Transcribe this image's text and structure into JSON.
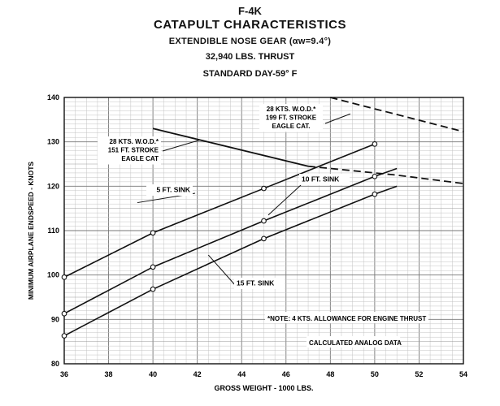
{
  "header": {
    "model": "F-4K",
    "title": "CATAPULT CHARACTERISTICS",
    "config": "EXTENDIBLE NOSE GEAR (αw=9.4°)",
    "thrust": "32,940 LBS. THRUST",
    "day": "STANDARD DAY-59° F"
  },
  "chart_data": {
    "type": "line",
    "title": "F-4K CATAPULT CHARACTERISTICS",
    "xlabel": "GROSS WEIGHT - 1000 LBS.",
    "ylabel": "MINIMUM AIRPLANE ENDSPEED - KNOTS",
    "xlim": [
      36,
      54
    ],
    "ylim": [
      80,
      140
    ],
    "xticks": [
      36,
      38,
      40,
      42,
      44,
      46,
      48,
      50,
      52,
      54
    ],
    "yticks": [
      80,
      90,
      100,
      110,
      120,
      130,
      140
    ],
    "grid": true,
    "series": [
      {
        "name": "5 FT. SINK",
        "label_text": "5 FT. SINK",
        "style": "solid",
        "x": [
          36,
          40,
          45,
          50
        ],
        "y": [
          99.5,
          109.5,
          119.5,
          129.5
        ]
      },
      {
        "name": "10 FT. SINK",
        "label_text": "10 FT. SINK",
        "style": "solid",
        "x": [
          36,
          40,
          45,
          50,
          51
        ],
        "y": [
          91.3,
          101.8,
          112.2,
          122.2,
          124
        ]
      },
      {
        "name": "15 FT. SINK",
        "label_text": "15 FT. SINK",
        "style": "solid",
        "x": [
          36,
          40,
          45,
          50,
          51
        ],
        "y": [
          86.3,
          96.8,
          108.2,
          118.2,
          120
        ]
      },
      {
        "name": "28 KTS. W.O.D. 151 FT. STROKE EAGLE CAT",
        "style": "solid-dashed",
        "x": [
          40,
          47,
          51,
          54
        ],
        "y": [
          133,
          124.5,
          122.5,
          120.6
        ],
        "label_lines": [
          "28 KTS. W.O.D.*",
          "151 FT. STROKE",
          "EAGLE CAT"
        ]
      },
      {
        "name": "28 KTS. W.O.D. 199 FT. STROKE EAGLE CAT.",
        "style": "dashed",
        "x": [
          48,
          54
        ],
        "y": [
          140,
          132.3
        ],
        "label_lines": [
          "28 KTS. W.O.D.*",
          "199 FT. STROKE",
          "EAGLE CAT."
        ]
      }
    ],
    "annotations": {
      "note": "*NOTE:  4 KTS. ALLOWANCE FOR ENGINE THRUST",
      "source": "CALCULATED ANALOG DATA"
    }
  }
}
